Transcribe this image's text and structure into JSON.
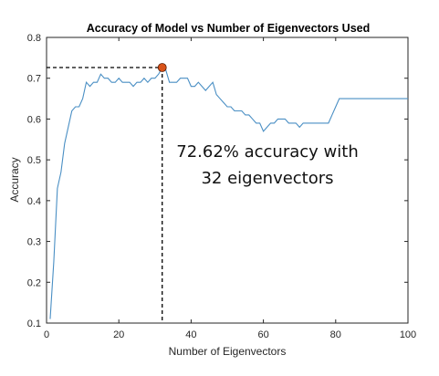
{
  "chart_data": {
    "type": "line",
    "title": "Accuracy of Model vs Number of Eigenvectors Used",
    "xlabel": "Number of Eigenvectors",
    "ylabel": "Accuracy",
    "xlim": [
      0,
      100
    ],
    "ylim": [
      0.1,
      0.8
    ],
    "xticks": [
      0,
      20,
      40,
      60,
      80,
      100
    ],
    "yticks": [
      0.1,
      0.2,
      0.3,
      0.4,
      0.5,
      0.6,
      0.7,
      0.8
    ],
    "xtick_labels": [
      "0",
      "20",
      "40",
      "60",
      "80",
      "100"
    ],
    "ytick_labels": [
      "0.1",
      "0.2",
      "0.3",
      "0.4",
      "0.5",
      "0.6",
      "0.7",
      "0.8"
    ],
    "grid": false,
    "series_color": "#4a8fc4",
    "highlight_color": "#d95319",
    "x": [
      1,
      2,
      3,
      4,
      5,
      6,
      7,
      8,
      9,
      10,
      11,
      12,
      13,
      14,
      15,
      16,
      17,
      18,
      19,
      20,
      21,
      22,
      23,
      24,
      25,
      26,
      27,
      28,
      29,
      30,
      31,
      32,
      33,
      34,
      35,
      36,
      37,
      38,
      39,
      40,
      41,
      42,
      43,
      44,
      45,
      46,
      47,
      48,
      49,
      50,
      51,
      52,
      53,
      54,
      55,
      56,
      57,
      58,
      59,
      60,
      61,
      62,
      63,
      64,
      65,
      66,
      67,
      68,
      69,
      70,
      71,
      72,
      73,
      74,
      75,
      76,
      77,
      78,
      79,
      80,
      81,
      82,
      83,
      84,
      85,
      86,
      87,
      88,
      89,
      90,
      91,
      92,
      93,
      94,
      95,
      96,
      97,
      98,
      99,
      100
    ],
    "y": [
      0.11,
      0.25,
      0.43,
      0.47,
      0.54,
      0.58,
      0.62,
      0.63,
      0.63,
      0.65,
      0.69,
      0.68,
      0.69,
      0.69,
      0.71,
      0.7,
      0.7,
      0.69,
      0.69,
      0.7,
      0.69,
      0.69,
      0.69,
      0.68,
      0.69,
      0.69,
      0.7,
      0.69,
      0.7,
      0.7,
      0.71,
      0.7262,
      0.72,
      0.69,
      0.69,
      0.69,
      0.7,
      0.7,
      0.7,
      0.68,
      0.68,
      0.69,
      0.68,
      0.67,
      0.68,
      0.69,
      0.66,
      0.65,
      0.64,
      0.63,
      0.63,
      0.62,
      0.62,
      0.62,
      0.61,
      0.61,
      0.6,
      0.59,
      0.59,
      0.57,
      0.58,
      0.59,
      0.59,
      0.6,
      0.6,
      0.6,
      0.59,
      0.59,
      0.59,
      0.58,
      0.59,
      0.59,
      0.59,
      0.59,
      0.59,
      0.59,
      0.59,
      0.59,
      0.61,
      0.63,
      0.65,
      0.65,
      0.65,
      0.65,
      0.65,
      0.65,
      0.65,
      0.65,
      0.65,
      0.65,
      0.65,
      0.65,
      0.65,
      0.65,
      0.65,
      0.65,
      0.65,
      0.65,
      0.65,
      0.65
    ],
    "highlight_point": {
      "x": 32,
      "y": 0.7262
    },
    "annotation": [
      "72.62% accuracy with",
      "32 eigenvectors"
    ]
  }
}
